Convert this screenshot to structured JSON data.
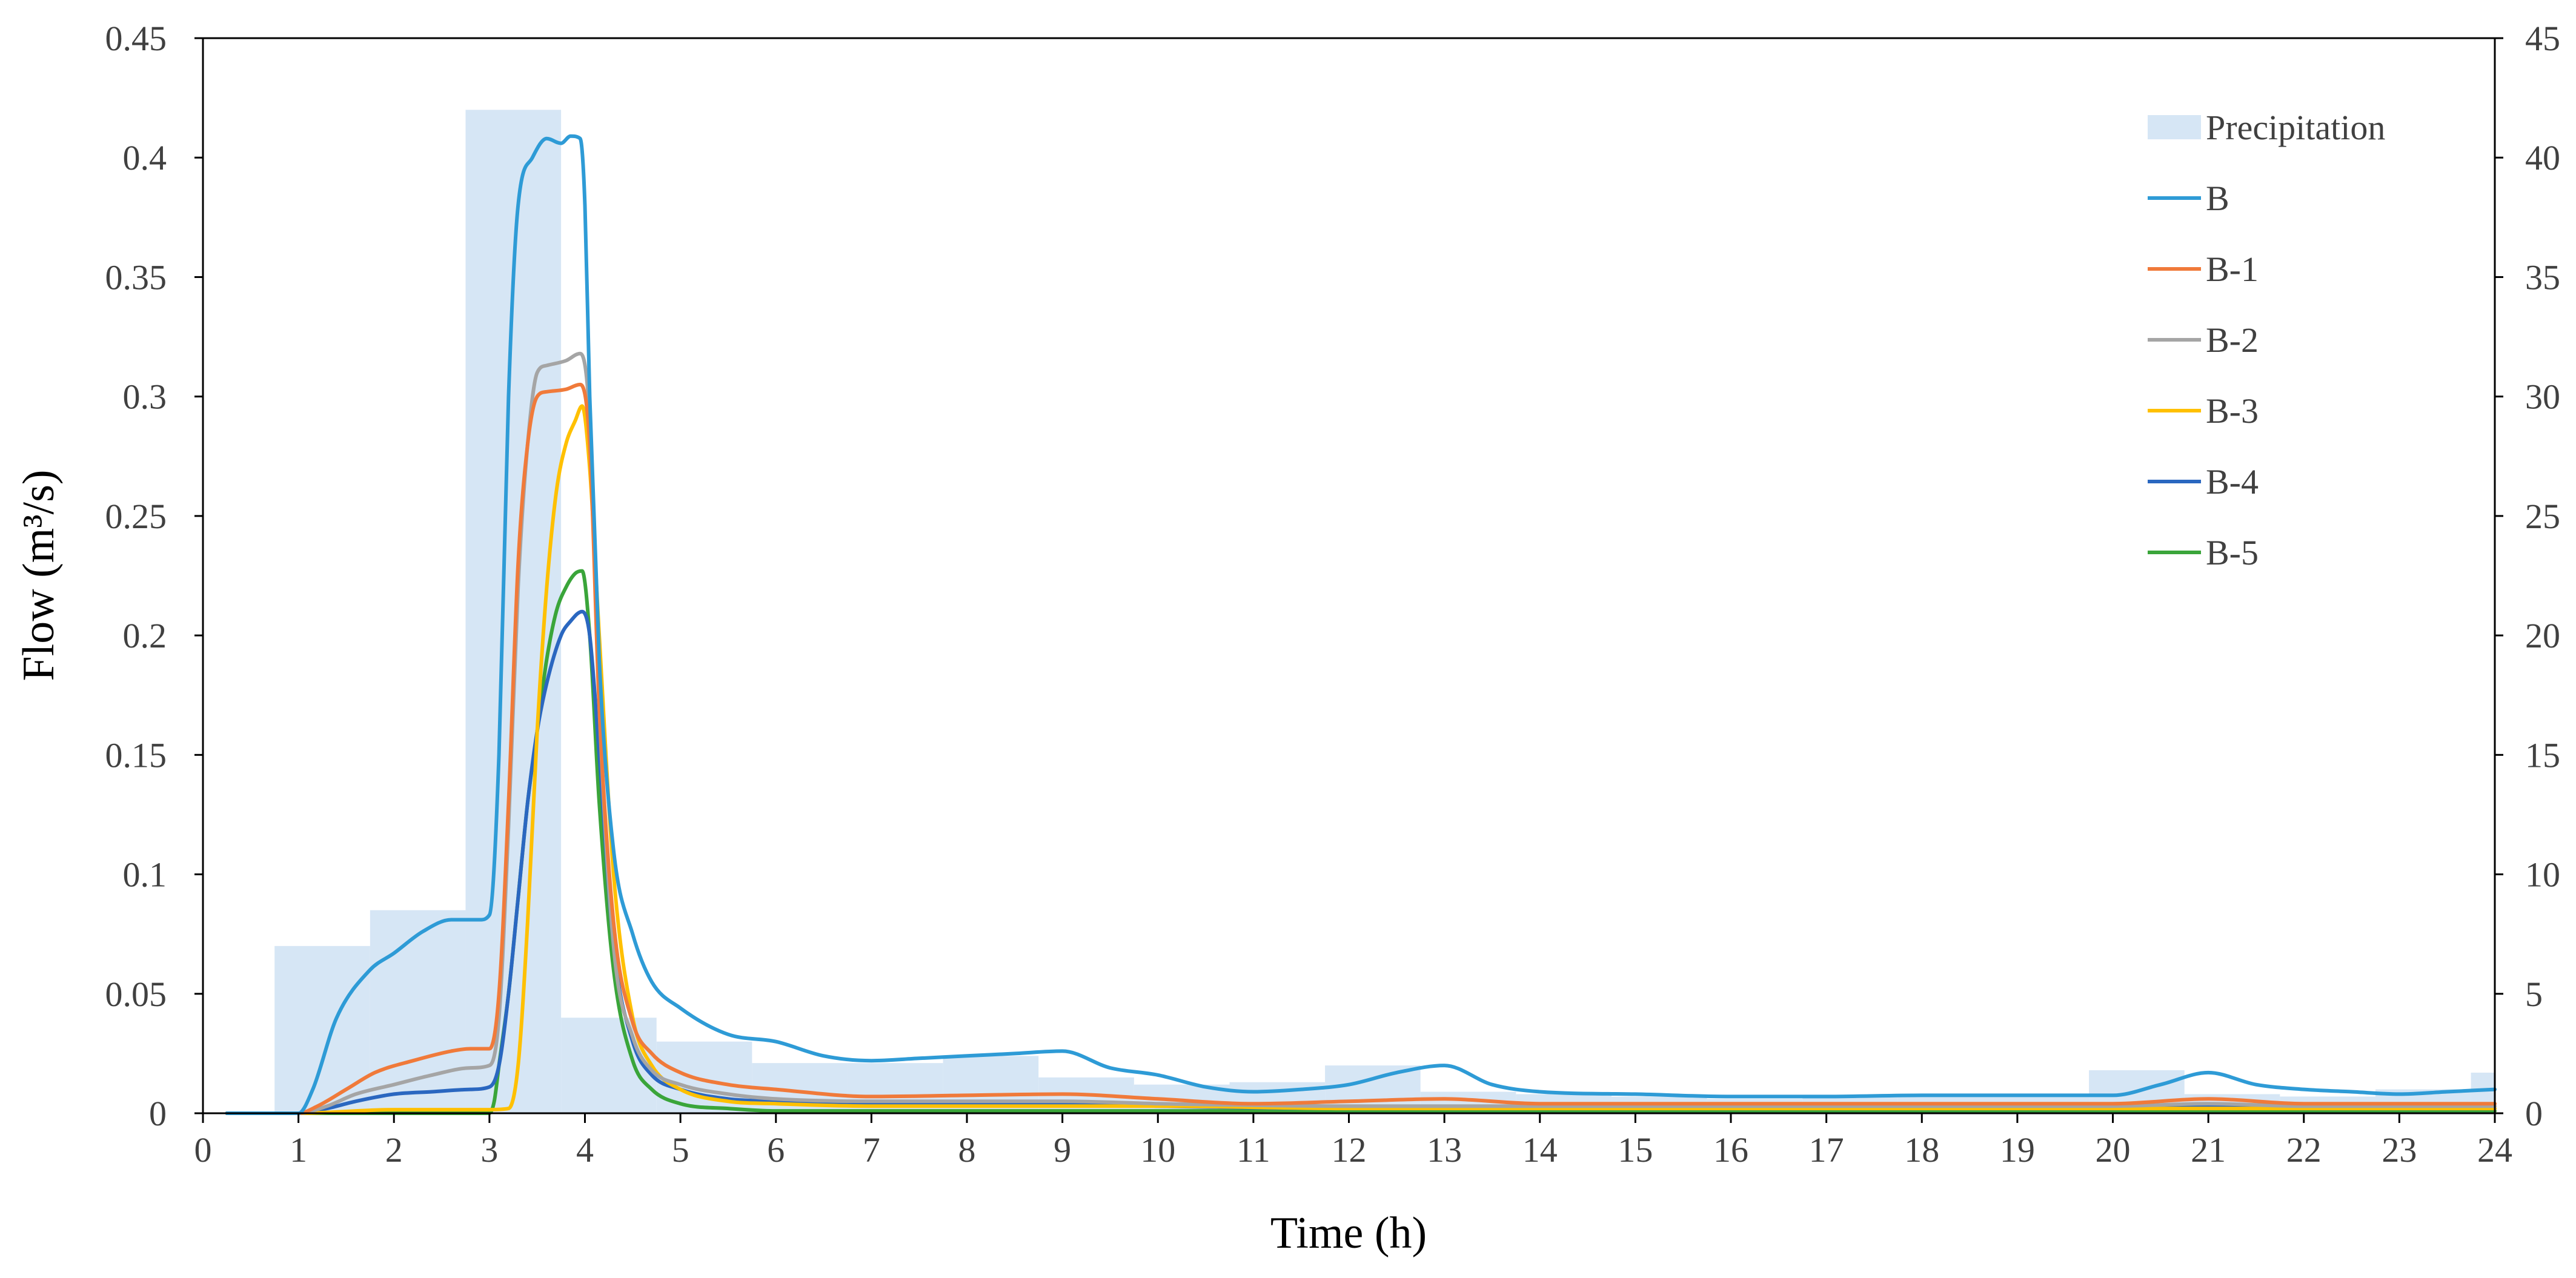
{
  "chart_data": {
    "type": "line",
    "title": "",
    "xlabel": "Time (h)",
    "ylabel": "Flow (m³/s)",
    "xlim": [
      0,
      24
    ],
    "ylim": [
      0,
      0.45
    ],
    "y2lim": [
      0,
      45
    ],
    "x_ticks": [
      "0",
      "1",
      "2",
      "3",
      "4",
      "5",
      "6",
      "7",
      "8",
      "9",
      "10",
      "11",
      "12",
      "13",
      "14",
      "15",
      "16",
      "17",
      "18",
      "19",
      "20",
      "21",
      "22",
      "23",
      "24"
    ],
    "y_ticks": [
      "0",
      "0.05",
      "0.1",
      "0.15",
      "0.2",
      "0.25",
      "0.3",
      "0.35",
      "0.4",
      "0.45"
    ],
    "y2_ticks": [
      "0",
      "5",
      "10",
      "15",
      "20",
      "25",
      "30",
      "35",
      "40",
      "45"
    ],
    "grid": false,
    "legend_position": "top-right",
    "precipitation": {
      "name": "Precipitation",
      "color": "#d6e6f5",
      "bars": [
        {
          "start": 0.75,
          "end": 1.75,
          "value": 7.0
        },
        {
          "start": 1.75,
          "end": 2.75,
          "value": 8.5
        },
        {
          "start": 2.75,
          "end": 3.75,
          "value": 42.0
        },
        {
          "start": 3.75,
          "end": 4.75,
          "value": 4.0
        },
        {
          "start": 4.75,
          "end": 5.75,
          "value": 3.0
        },
        {
          "start": 5.75,
          "end": 6.75,
          "value": 2.1
        },
        {
          "start": 6.75,
          "end": 7.75,
          "value": 2.1
        },
        {
          "start": 7.75,
          "end": 8.75,
          "value": 2.4
        },
        {
          "start": 8.75,
          "end": 9.75,
          "value": 1.5
        },
        {
          "start": 9.75,
          "end": 10.75,
          "value": 1.2
        },
        {
          "start": 10.75,
          "end": 11.75,
          "value": 1.3
        },
        {
          "start": 11.75,
          "end": 12.75,
          "value": 2.0
        },
        {
          "start": 12.75,
          "end": 13.75,
          "value": 0.9
        },
        {
          "start": 13.75,
          "end": 14.75,
          "value": 0.8
        },
        {
          "start": 14.75,
          "end": 15.75,
          "value": 0.7
        },
        {
          "start": 15.75,
          "end": 16.75,
          "value": 0.6
        },
        {
          "start": 16.75,
          "end": 17.75,
          "value": 0.7
        },
        {
          "start": 17.75,
          "end": 18.75,
          "value": 0.7
        },
        {
          "start": 18.75,
          "end": 19.75,
          "value": 0.7
        },
        {
          "start": 19.75,
          "end": 20.75,
          "value": 1.8
        },
        {
          "start": 20.75,
          "end": 21.75,
          "value": 0.8
        },
        {
          "start": 21.75,
          "end": 22.75,
          "value": 0.7
        },
        {
          "start": 22.75,
          "end": 23.75,
          "value": 1.0
        },
        {
          "start": 23.75,
          "end": 24.0,
          "value": 1.7
        }
      ]
    },
    "series": [
      {
        "name": "B",
        "color": "#2e9bd6",
        "x": [
          0.25,
          1.0,
          1.15,
          1.4,
          1.75,
          2.0,
          2.3,
          2.6,
          2.9,
          3.0,
          3.1,
          3.2,
          3.3,
          3.45,
          3.6,
          3.75,
          3.85,
          3.95,
          4.0,
          4.05,
          4.15,
          4.3,
          4.5,
          4.7,
          5.0,
          5.5,
          6.0,
          6.5,
          7.0,
          7.5,
          8.0,
          8.5,
          9.0,
          9.5,
          10.0,
          10.5,
          11.0,
          11.5,
          12.0,
          12.5,
          13.0,
          13.5,
          14.0,
          15.0,
          16.0,
          17.0,
          18.0,
          19.0,
          20.0,
          20.5,
          21.0,
          21.5,
          22.0,
          22.5,
          23.0,
          23.5,
          24.0
        ],
        "y": [
          0,
          0,
          0.01,
          0.04,
          0.06,
          0.067,
          0.076,
          0.081,
          0.081,
          0.083,
          0.15,
          0.3,
          0.38,
          0.4,
          0.408,
          0.406,
          0.409,
          0.408,
          0.38,
          0.3,
          0.19,
          0.11,
          0.075,
          0.055,
          0.044,
          0.033,
          0.03,
          0.024,
          0.022,
          0.023,
          0.024,
          0.025,
          0.026,
          0.019,
          0.016,
          0.011,
          0.009,
          0.01,
          0.012,
          0.017,
          0.02,
          0.012,
          0.009,
          0.008,
          0.007,
          0.007,
          0.0075,
          0.0075,
          0.0075,
          0.012,
          0.017,
          0.012,
          0.01,
          0.009,
          0.008,
          0.009,
          0.01
        ]
      },
      {
        "name": "B-1",
        "color": "#f07a3a",
        "x": [
          0.25,
          1.0,
          1.2,
          1.5,
          1.8,
          2.2,
          2.6,
          2.8,
          3.0,
          3.1,
          3.2,
          3.3,
          3.4,
          3.5,
          3.6,
          3.8,
          3.95,
          4.05,
          4.15,
          4.3,
          4.5,
          4.7,
          5.0,
          5.5,
          6.0,
          7.0,
          8.0,
          9.0,
          10.0,
          11.0,
          12.0,
          13.0,
          14.0,
          15.0,
          16.0,
          18.0,
          20.0,
          21.0,
          22.0,
          23.0,
          24.0
        ],
        "y": [
          0,
          0,
          0.003,
          0.01,
          0.017,
          0.022,
          0.026,
          0.027,
          0.027,
          0.05,
          0.13,
          0.23,
          0.28,
          0.3,
          0.302,
          0.303,
          0.305,
          0.28,
          0.17,
          0.08,
          0.038,
          0.025,
          0.017,
          0.012,
          0.01,
          0.007,
          0.0075,
          0.008,
          0.006,
          0.004,
          0.005,
          0.006,
          0.004,
          0.004,
          0.004,
          0.004,
          0.004,
          0.006,
          0.004,
          0.004,
          0.004
        ]
      },
      {
        "name": "B-2",
        "color": "#a5a5a5",
        "x": [
          0.25,
          1.0,
          1.3,
          1.6,
          2.0,
          2.4,
          2.8,
          3.0,
          3.1,
          3.2,
          3.3,
          3.4,
          3.5,
          3.6,
          3.8,
          3.95,
          4.05,
          4.15,
          4.3,
          4.5,
          4.7,
          5.0,
          5.5,
          6.0,
          7.0,
          8.0,
          9.0,
          10.0,
          12.0,
          14.0,
          16.0,
          18.0,
          20.0,
          21.0,
          22.0,
          24.0
        ],
        "y": [
          0,
          0,
          0.003,
          0.008,
          0.012,
          0.016,
          0.019,
          0.02,
          0.04,
          0.12,
          0.22,
          0.28,
          0.31,
          0.313,
          0.315,
          0.318,
          0.29,
          0.17,
          0.07,
          0.032,
          0.018,
          0.012,
          0.008,
          0.006,
          0.005,
          0.005,
          0.005,
          0.004,
          0.003,
          0.003,
          0.003,
          0.003,
          0.003,
          0.004,
          0.003,
          0.003
        ]
      },
      {
        "name": "B-3",
        "color": "#ffc000",
        "x": [
          0.25,
          1.0,
          2.0,
          3.0,
          3.2,
          3.3,
          3.4,
          3.5,
          3.6,
          3.7,
          3.8,
          3.9,
          3.97,
          4.05,
          4.15,
          4.3,
          4.5,
          4.7,
          5.0,
          5.5,
          6.0,
          7.0,
          8.0,
          10.0,
          12.0,
          14.0,
          16.0,
          18.0,
          20.0,
          22.0,
          24.0
        ],
        "y": [
          0,
          0,
          0.0015,
          0.0015,
          0.002,
          0.02,
          0.08,
          0.16,
          0.22,
          0.26,
          0.28,
          0.29,
          0.296,
          0.27,
          0.2,
          0.1,
          0.04,
          0.02,
          0.01,
          0.005,
          0.004,
          0.003,
          0.003,
          0.003,
          0.002,
          0.002,
          0.002,
          0.002,
          0.002,
          0.002,
          0.002
        ]
      },
      {
        "name": "B-4",
        "color": "#2a67c0",
        "x": [
          0.25,
          1.0,
          1.3,
          1.6,
          2.0,
          2.4,
          2.8,
          3.0,
          3.1,
          3.2,
          3.3,
          3.4,
          3.5,
          3.6,
          3.75,
          3.85,
          3.97,
          4.05,
          4.15,
          4.3,
          4.5,
          4.7,
          5.0,
          5.5,
          6.0,
          7.0,
          8.0,
          9.0,
          10.0,
          12.0,
          14.0,
          16.0,
          18.0,
          20.0,
          21.0,
          22.0,
          24.0
        ],
        "y": [
          0,
          0,
          0.002,
          0.005,
          0.008,
          0.009,
          0.01,
          0.011,
          0.02,
          0.05,
          0.09,
          0.13,
          0.16,
          0.18,
          0.2,
          0.206,
          0.21,
          0.2,
          0.15,
          0.07,
          0.03,
          0.016,
          0.01,
          0.006,
          0.005,
          0.004,
          0.004,
          0.004,
          0.003,
          0.002,
          0.002,
          0.002,
          0.002,
          0.002,
          0.003,
          0.002,
          0.002
        ]
      },
      {
        "name": "B-5",
        "color": "#3aa53a",
        "x": [
          0.25,
          1.0,
          2.0,
          3.0,
          3.05,
          3.1,
          3.2,
          3.3,
          3.4,
          3.5,
          3.6,
          3.7,
          3.8,
          3.9,
          3.97,
          4.05,
          4.15,
          4.3,
          4.5,
          4.7,
          5.0,
          5.5,
          6.0,
          7.0,
          8.0,
          10.0,
          12.0,
          14.0,
          16.0,
          18.0,
          20.0,
          22.0,
          24.0
        ],
        "y": [
          0,
          0,
          0,
          0.0,
          0.005,
          0.02,
          0.05,
          0.09,
          0.13,
          0.16,
          0.19,
          0.21,
          0.22,
          0.226,
          0.227,
          0.2,
          0.13,
          0.06,
          0.022,
          0.01,
          0.004,
          0.002,
          0.001,
          0.001,
          0.001,
          0.001,
          0.001,
          0.001,
          0.001,
          0.001,
          0.001,
          0.001,
          0.001
        ]
      }
    ]
  }
}
